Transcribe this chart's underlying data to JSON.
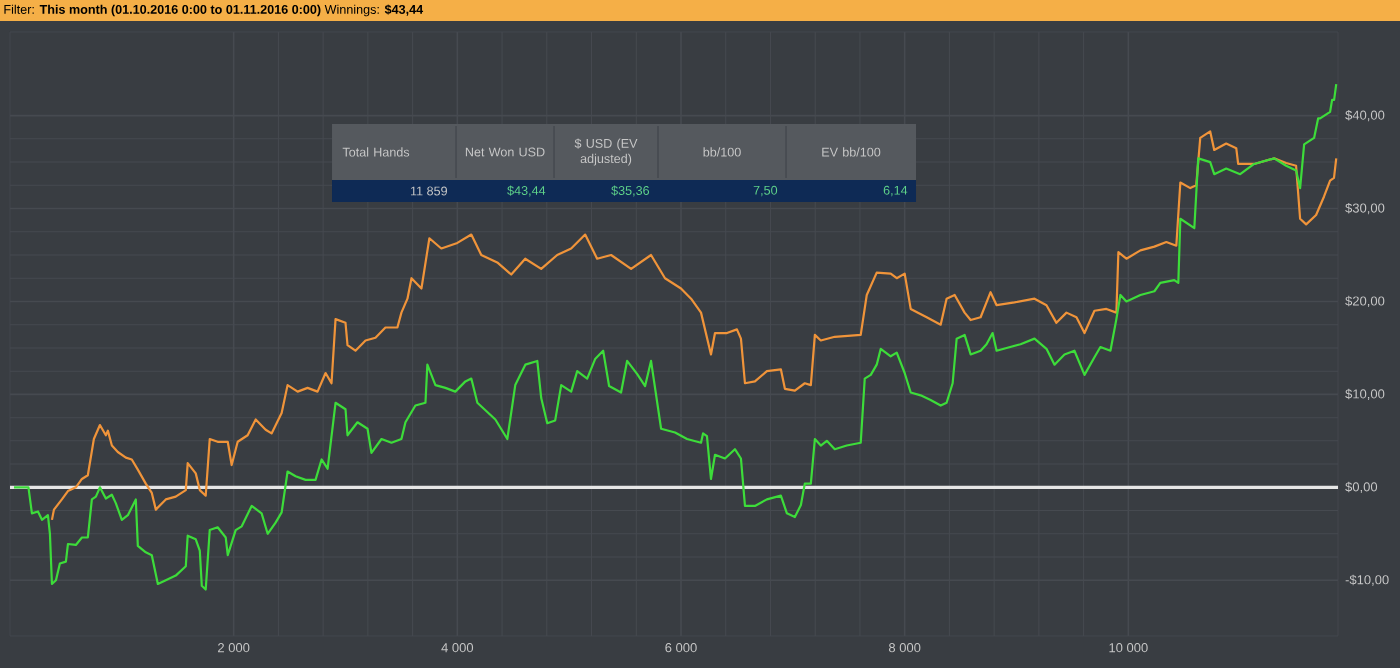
{
  "chart_data": {
    "type": "line",
    "title": "Filter: **This month (01.10.2016 0:00 to 01.11.2016 0:00)** Winnings: **$43,44**",
    "annotations": [
      "Total Hands",
      "Net Won USD",
      "$ USD (EV adjusted)",
      "bb/100",
      "EV bb/100",
      "11 859",
      "$43,44",
      "$35,36",
      "7,50",
      "6,14"
    ],
    "xlim": [
      0,
      11875
    ],
    "ylim": [
      -16,
      49
    ],
    "xticks": [
      {
        "value": 2000,
        "label": "2 000"
      },
      {
        "value": 4000,
        "label": "4 000"
      },
      {
        "value": 6000,
        "label": "6 000"
      },
      {
        "value": 8000,
        "label": "8 000"
      },
      {
        "value": 10000,
        "label": "10 000"
      }
    ],
    "yticks": [
      {
        "value": -10,
        "label": "-$10,00"
      },
      {
        "value": 0,
        "label": "$0,00"
      },
      {
        "value": 10,
        "label": "$10,00"
      },
      {
        "value": 20,
        "label": "$20,00"
      },
      {
        "value": 30,
        "label": "$30,00"
      },
      {
        "value": 40,
        "label": "$40,00"
      }
    ],
    "grid": true,
    "ref_lines": [
      {
        "axis": "y",
        "value": 0,
        "color": "#e6e6e6"
      }
    ],
    "series": [
      {
        "color": "#f0943a",
        "x": [
          375,
          393,
          464,
          518,
          589,
          643,
          696,
          750,
          804,
          857,
          875,
          911,
          964,
          1036,
          1089,
          1143,
          1214,
          1268,
          1304,
          1393,
          1482,
          1572,
          1589,
          1661,
          1697,
          1750,
          1786,
          1857,
          1947,
          1982,
          2036,
          2125,
          2197,
          2286,
          2339,
          2429,
          2482,
          2572,
          2661,
          2750,
          2822,
          2875,
          2911,
          3000,
          3018,
          3089,
          3179,
          3268,
          3357,
          3464,
          3500,
          3554,
          3590,
          3679,
          3750,
          3857,
          4000,
          4125,
          4214,
          4357,
          4482,
          4607,
          4750,
          4893,
          5018,
          5143,
          5250,
          5375,
          5554,
          5732,
          5857,
          6000,
          6090,
          6179,
          6268,
          6304,
          6411,
          6500,
          6536,
          6572,
          6661,
          6768,
          6893,
          6929,
          7018,
          7107,
          7161,
          7197,
          7250,
          7375,
          7607,
          7661,
          7750,
          7875,
          7929,
          8000,
          8054,
          8197,
          8322,
          8375,
          8447,
          8536,
          8590,
          8679,
          8768,
          8822,
          8982,
          9161,
          9268,
          9357,
          9447,
          9536,
          9608,
          9697,
          9804,
          9893,
          9911,
          9983,
          10108,
          10233,
          10340,
          10429,
          10465,
          10554,
          10607,
          10643,
          10732,
          10768,
          10875,
          10965,
          10982,
          11125,
          11304,
          11411,
          11500,
          11536,
          11590,
          11679,
          11750,
          11804,
          11839,
          11859
        ],
        "values": [
          -3.5,
          -2.4,
          -1.3,
          -0.4,
          0,
          0.9,
          1.3,
          5.2,
          6.7,
          5.6,
          6.1,
          4.5,
          3.8,
          3.2,
          3,
          1.9,
          0.4,
          -0.6,
          -2.4,
          -1.3,
          -1,
          -0.3,
          2.6,
          1.5,
          -0.3,
          -0.9,
          5.2,
          4.9,
          4.9,
          2.4,
          4.9,
          5.6,
          7.3,
          6.2,
          5.8,
          8,
          11,
          10.3,
          10.7,
          10.3,
          12.3,
          11.2,
          18.1,
          17.7,
          15.3,
          14.7,
          15.8,
          16.1,
          17.2,
          17.2,
          18.8,
          20.3,
          22.5,
          21.4,
          26.8,
          25.7,
          26.3,
          27.2,
          25,
          24.2,
          22.9,
          24.6,
          23.5,
          25,
          25.7,
          27.2,
          24.6,
          25,
          23.5,
          25,
          22.5,
          21.4,
          20.3,
          18.8,
          14.3,
          16.6,
          16.6,
          17,
          16,
          11.2,
          11.4,
          12.5,
          12.7,
          10.6,
          10.4,
          11.2,
          11,
          16.4,
          15.8,
          16.2,
          16.4,
          20.7,
          23.1,
          23,
          22.5,
          23,
          19.2,
          18.3,
          17.5,
          20.3,
          20.7,
          18.8,
          18,
          18.3,
          21,
          19.6,
          19.9,
          20.3,
          19.6,
          17.7,
          18.8,
          18.3,
          16.6,
          19,
          19.2,
          18.8,
          25.3,
          24.6,
          25.5,
          25.9,
          26.4,
          26,
          32.8,
          32.2,
          32.5,
          37.6,
          38.3,
          36.3,
          37,
          36.5,
          34.8,
          34.8,
          35.4,
          34.9,
          34.6,
          28.9,
          28.3,
          29.3,
          31.3,
          33,
          33.3,
          35.4
        ]
      },
      {
        "color": "#3ddc3a",
        "x": [
          36,
          165,
          196,
          250,
          286,
          339,
          357,
          375,
          411,
          446,
          500,
          518,
          589,
          643,
          696,
          732,
          768,
          804,
          857,
          911,
          946,
          1000,
          1054,
          1125,
          1143,
          1214,
          1268,
          1322,
          1393,
          1482,
          1572,
          1589,
          1661,
          1697,
          1715,
          1750,
          1786,
          1857,
          1929,
          1947,
          2018,
          2072,
          2161,
          2250,
          2304,
          2375,
          2429,
          2482,
          2554,
          2643,
          2732,
          2786,
          2840,
          2911,
          3000,
          3018,
          3107,
          3197,
          3232,
          3322,
          3411,
          3500,
          3536,
          3625,
          3715,
          3732,
          3804,
          3893,
          3982,
          4072,
          4125,
          4179,
          4340,
          4447,
          4518,
          4608,
          4715,
          4750,
          4804,
          4875,
          4929,
          5018,
          5072,
          5161,
          5232,
          5304,
          5357,
          5464,
          5518,
          5607,
          5679,
          5732,
          5822,
          5947,
          6054,
          6179,
          6197,
          6232,
          6268,
          6304,
          6393,
          6482,
          6536,
          6572,
          6661,
          6768,
          6893,
          6947,
          7018,
          7072,
          7107,
          7161,
          7197,
          7250,
          7304,
          7375,
          7482,
          7607,
          7643,
          7697,
          7750,
          7786,
          7875,
          7929,
          8000,
          8054,
          8143,
          8232,
          8322,
          8375,
          8429,
          8465,
          8536,
          8590,
          8679,
          8732,
          8786,
          8822,
          8911,
          9036,
          9161,
          9268,
          9340,
          9429,
          9518,
          9608,
          9697,
          9750,
          9840,
          9893,
          9929,
          9983,
          10108,
          10233,
          10286,
          10411,
          10447,
          10465,
          10590,
          10625,
          10732,
          10768,
          10875,
          11000,
          11125,
          11304,
          11411,
          11500,
          11536,
          11572,
          11661,
          11697,
          11715,
          11804,
          11822,
          11840,
          11859
        ],
        "values": [
          0,
          0,
          -2.8,
          -2.6,
          -3.5,
          -3,
          -5,
          -10.4,
          -10,
          -8.2,
          -8,
          -6.1,
          -6.2,
          -5.4,
          -5.4,
          -1.3,
          -1,
          0,
          -1.2,
          -0.8,
          -1.7,
          -3.5,
          -3,
          -1.3,
          -6.3,
          -7,
          -7.3,
          -10.4,
          -10,
          -9.5,
          -8.5,
          -5.2,
          -5.6,
          -6.8,
          -10.6,
          -11,
          -4.6,
          -4.3,
          -5.4,
          -7.3,
          -4.6,
          -4.2,
          -2,
          -2.8,
          -5,
          -3.8,
          -2.7,
          1.7,
          1.2,
          0.8,
          0.8,
          3,
          2,
          9.1,
          8.4,
          5.6,
          7,
          6.3,
          3.7,
          5.2,
          4.8,
          5.2,
          7,
          8.8,
          9.1,
          13.2,
          11,
          10.7,
          10.3,
          11.4,
          11.7,
          9.1,
          7.3,
          5.2,
          11,
          13.2,
          13.6,
          9.6,
          6.9,
          7.2,
          11,
          10.3,
          12.5,
          11.7,
          13.8,
          14.7,
          10.9,
          10.2,
          13.6,
          12.2,
          10.9,
          13.6,
          6.3,
          5.9,
          5.2,
          4.8,
          5.8,
          5.5,
          0.9,
          3.5,
          3.1,
          4.1,
          3.1,
          -2,
          -2,
          -1.3,
          -0.9,
          -2.8,
          -3.2,
          -1.9,
          0.4,
          0.4,
          5.2,
          4.5,
          5,
          4.1,
          4.5,
          4.8,
          11.7,
          12.1,
          13.2,
          14.9,
          14.1,
          14.5,
          12.3,
          10.2,
          9.9,
          9.4,
          8.8,
          9.1,
          11.2,
          16,
          16.4,
          14.3,
          14.7,
          15.4,
          16.6,
          14.7,
          15,
          15.4,
          16,
          14.9,
          13.2,
          14.3,
          14.7,
          12.1,
          14,
          15.1,
          14.7,
          18.1,
          20.7,
          20,
          20.7,
          21.1,
          22,
          22.3,
          22,
          28.9,
          27.9,
          35.4,
          35,
          33.7,
          34.3,
          33.7,
          34.8,
          35.4,
          34.6,
          34.1,
          32.2,
          36.9,
          37.6,
          39.7,
          39.7,
          40.4,
          41.7,
          41.7,
          43.4
        ]
      }
    ]
  }
}
